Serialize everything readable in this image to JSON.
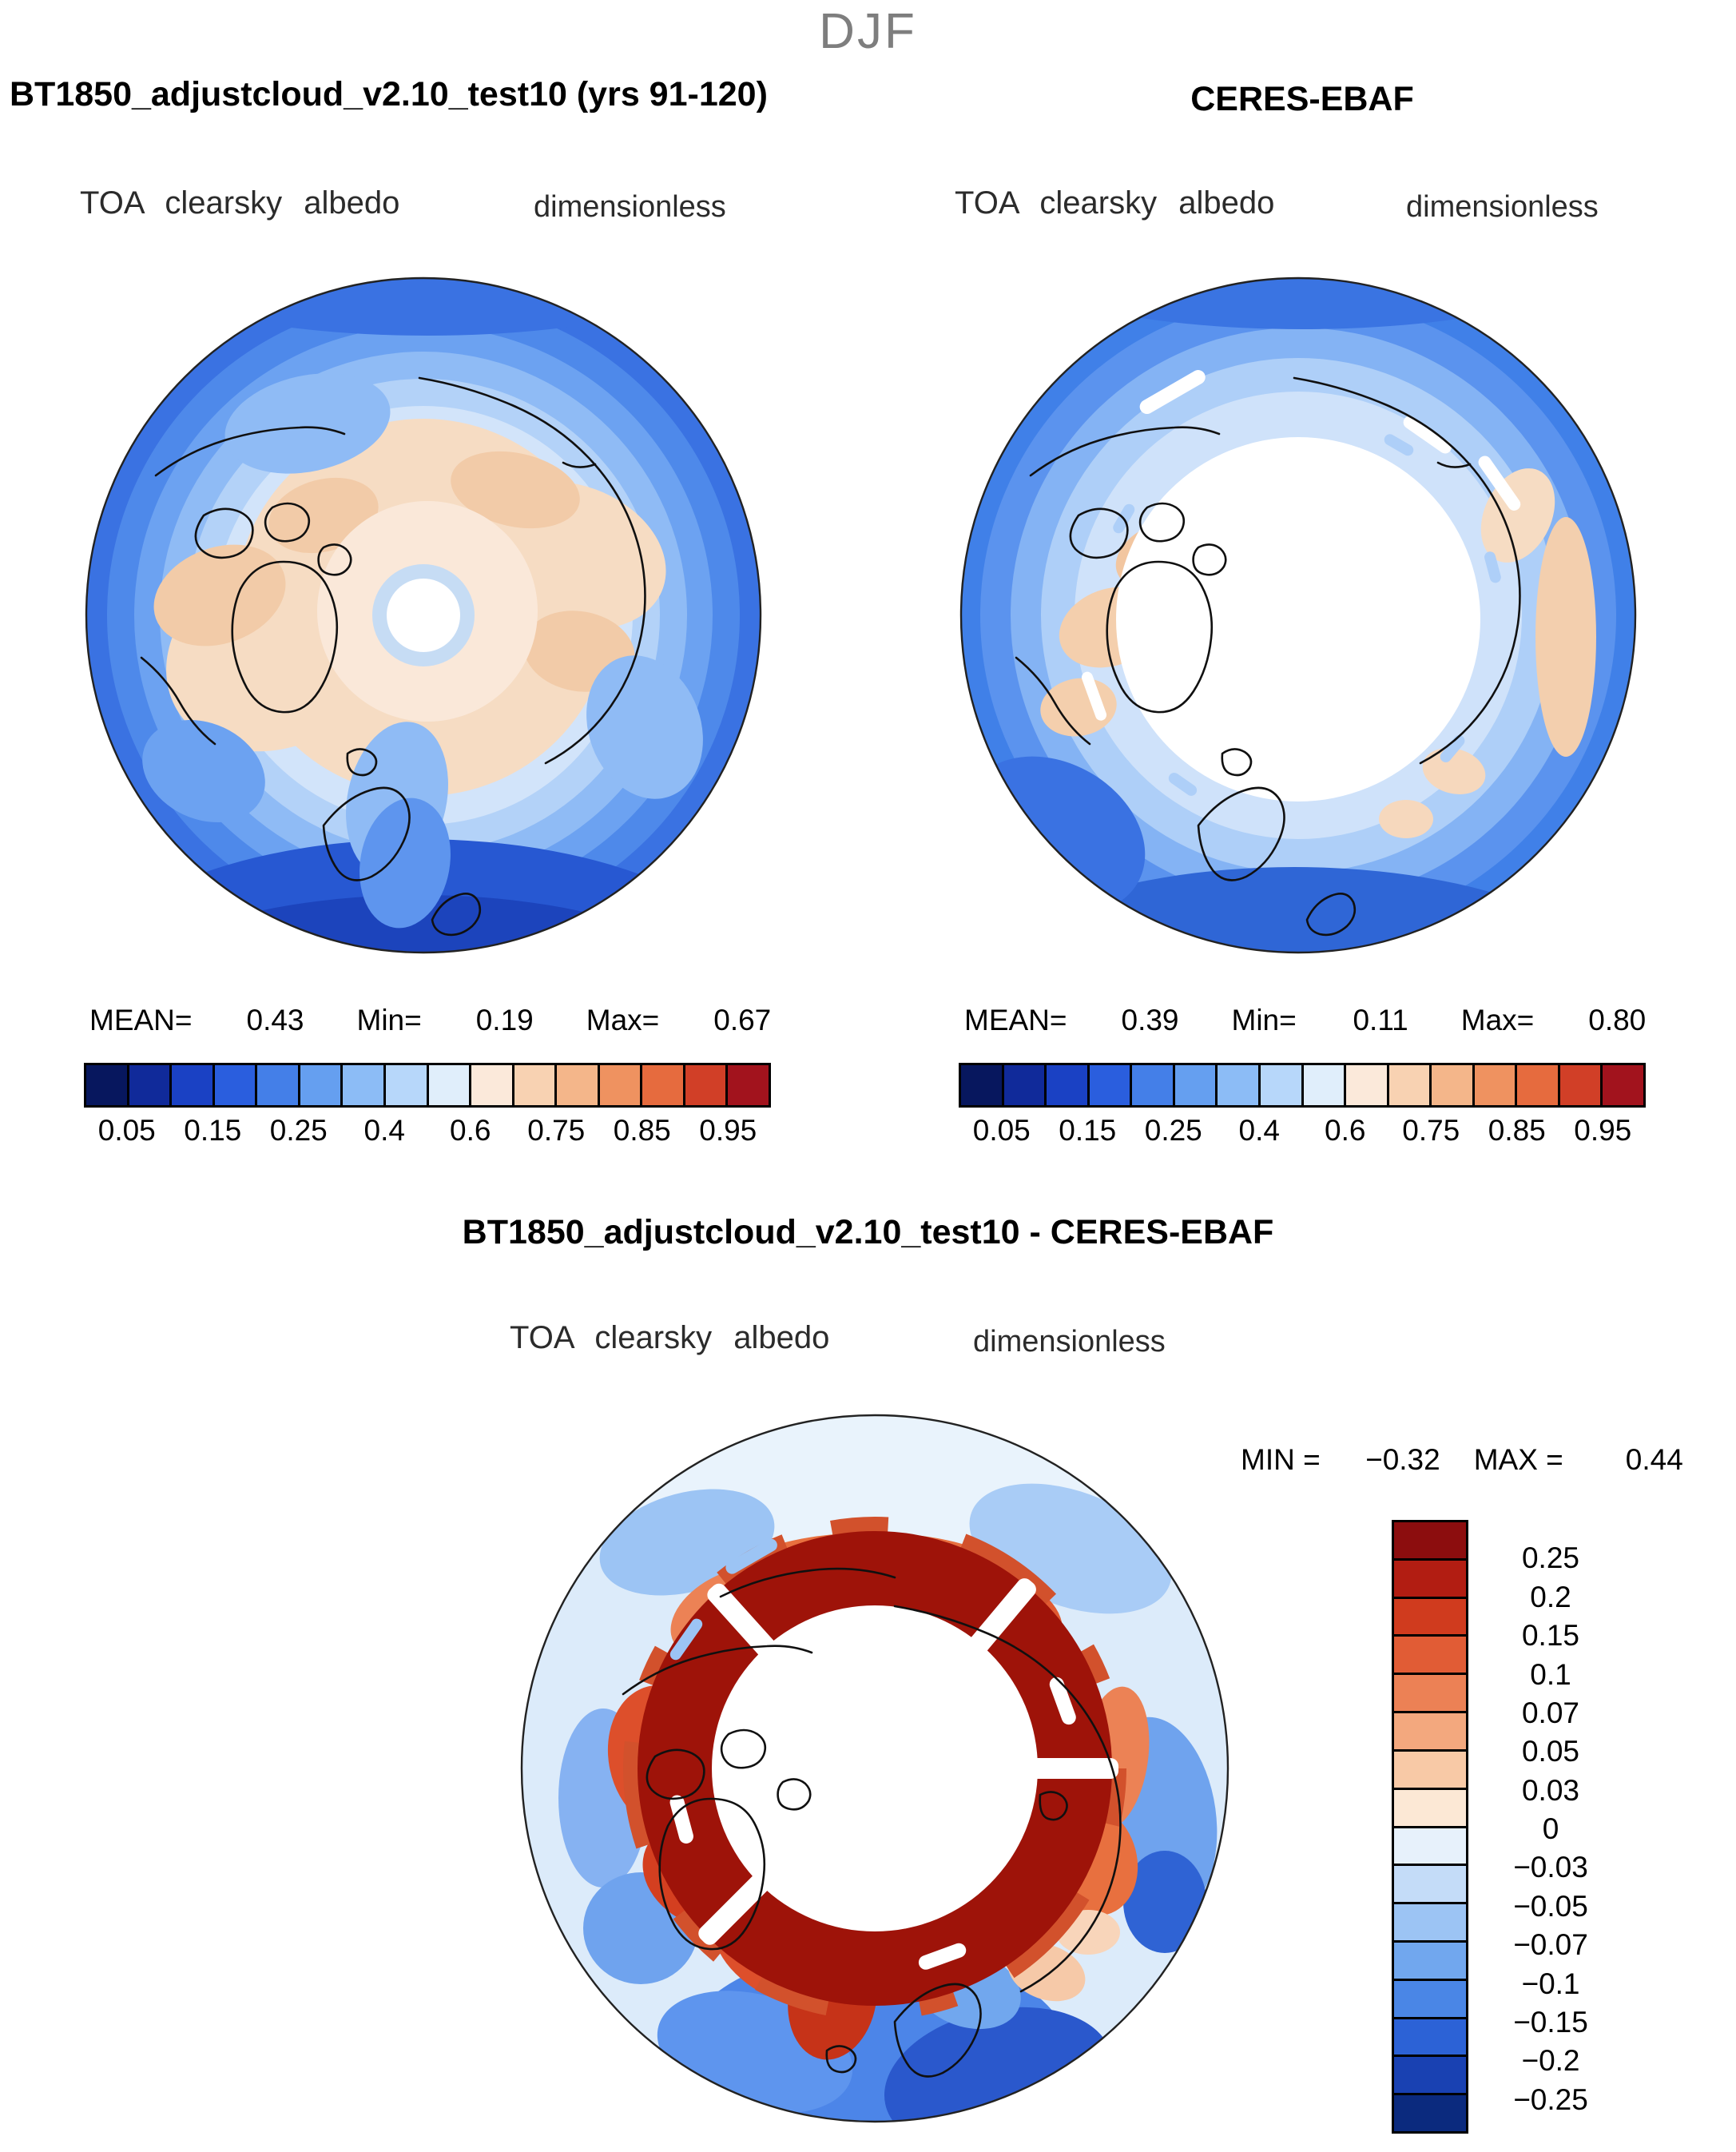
{
  "season": "DJF",
  "panels": {
    "model": {
      "title": "BT1850_adjustcloud_v2.10_test10 (yrs 91-120)",
      "field_label": "TOA clearsky albedo",
      "units_label": "dimensionless",
      "stats": {
        "mean_label": "MEAN=",
        "mean": "0.43",
        "min_label": "Min=",
        "min": "0.19",
        "max_label": "Max=",
        "max": "0.67"
      }
    },
    "obs": {
      "title": "CERES-EBAF",
      "field_label": "TOA clearsky albedo",
      "units_label": "dimensionless",
      "stats": {
        "mean_label": "MEAN=",
        "mean": "0.39",
        "min_label": "Min=",
        "min": "0.11",
        "max_label": "Max=",
        "max": "0.80"
      }
    },
    "diff": {
      "title": "BT1850_adjustcloud_v2.10_test10 - CERES-EBAF",
      "field_label": "TOA clearsky albedo",
      "units_label": "dimensionless",
      "stats": {
        "min_label": "MIN =",
        "min": "−0.32",
        "max_label": "MAX =",
        "max": "0.44"
      }
    }
  },
  "albedo_colorbar": {
    "tick_labels": [
      "0.05",
      "0.15",
      "0.25",
      "0.4",
      "0.6",
      "0.75",
      "0.85",
      "0.95"
    ],
    "colors": [
      "#07175e",
      "#102a9a",
      "#1a41c4",
      "#2a5ede",
      "#447fe8",
      "#659ff0",
      "#8cbcf6",
      "#b7d7fa",
      "#e0eefb",
      "#fbe9da",
      "#f8d2b2",
      "#f4b68a",
      "#ef9260",
      "#e66b3e",
      "#d13f27",
      "#a2131d"
    ]
  },
  "diff_colorbar": {
    "tick_labels": [
      "0.25",
      "0.2",
      "0.15",
      "0.1",
      "0.07",
      "0.05",
      "0.03",
      "0",
      "−0.03",
      "−0.05",
      "−0.07",
      "−0.1",
      "−0.15",
      "−0.2",
      "−0.25"
    ],
    "colors": [
      "#8c0d0e",
      "#b21d12",
      "#d03b1e",
      "#e15c35",
      "#ec8155",
      "#f3a87e",
      "#f8c9a6",
      "#fce8d5",
      "#e7f1fb",
      "#c4dcf8",
      "#9cc4f4",
      "#71a7ee",
      "#4a86e6",
      "#2c62d6",
      "#1941b2",
      "#0b2a7e"
    ]
  },
  "chart_data": [
    {
      "type": "heatmap",
      "subtype": "north-polar-stereographic-map",
      "season": "DJF",
      "title": "BT1850_adjustcloud_v2.10_test10 (yrs 91-120)",
      "variable": "TOA clearsky albedo",
      "units": "dimensionless",
      "stats": {
        "mean": 0.43,
        "min": 0.19,
        "max": 0.67
      },
      "colorbar_levels": [
        0.05,
        0.1,
        0.15,
        0.2,
        0.25,
        0.3,
        0.4,
        0.5,
        0.6,
        0.7,
        0.75,
        0.8,
        0.85,
        0.9,
        0.95
      ],
      "labeled_ticks": [
        0.05,
        0.15,
        0.25,
        0.4,
        0.6,
        0.75,
        0.85,
        0.95
      ],
      "legend_position": "bottom"
    },
    {
      "type": "heatmap",
      "subtype": "north-polar-stereographic-map",
      "season": "DJF",
      "title": "CERES-EBAF",
      "variable": "TOA clearsky albedo",
      "units": "dimensionless",
      "stats": {
        "mean": 0.39,
        "min": 0.11,
        "max": 0.8
      },
      "colorbar_levels": [
        0.05,
        0.1,
        0.15,
        0.2,
        0.25,
        0.3,
        0.4,
        0.5,
        0.6,
        0.7,
        0.75,
        0.8,
        0.85,
        0.9,
        0.95
      ],
      "labeled_ticks": [
        0.05,
        0.15,
        0.25,
        0.4,
        0.6,
        0.75,
        0.85,
        0.95
      ],
      "legend_position": "bottom"
    },
    {
      "type": "heatmap",
      "subtype": "north-polar-stereographic-map",
      "season": "DJF",
      "title": "BT1850_adjustcloud_v2.10_test10 - CERES-EBAF",
      "variable": "TOA clearsky albedo",
      "units": "dimensionless",
      "stats": {
        "min": -0.32,
        "max": 0.44
      },
      "colorbar_levels": [
        0.25,
        0.2,
        0.15,
        0.1,
        0.07,
        0.05,
        0.03,
        0,
        -0.03,
        -0.05,
        -0.07,
        -0.1,
        -0.15,
        -0.2,
        -0.25
      ],
      "legend_position": "right"
    }
  ]
}
